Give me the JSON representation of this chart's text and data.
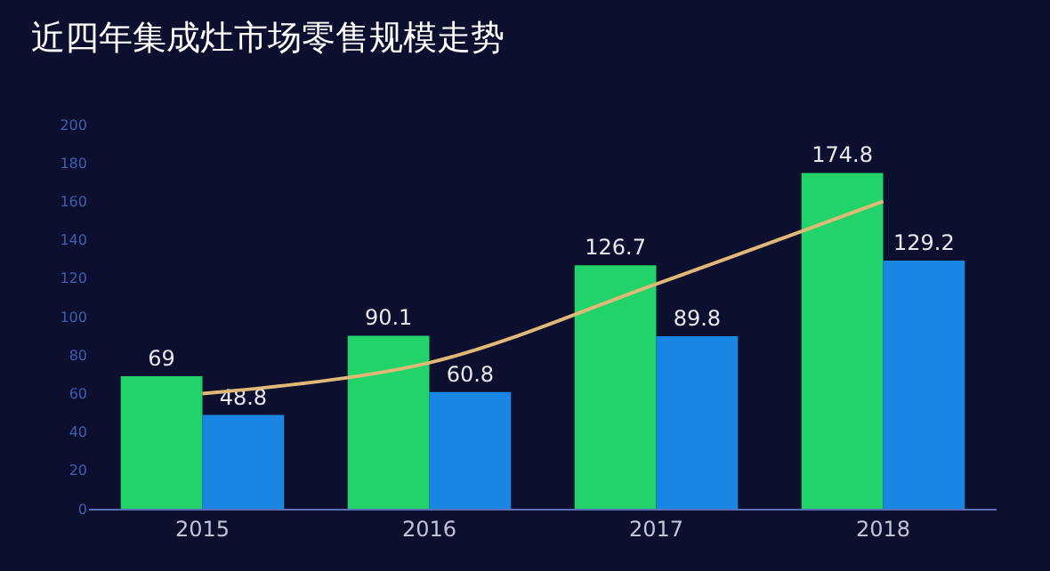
{
  "chart_data": {
    "type": "bar",
    "title": "近四年集成灶市场零售规模走势",
    "categories": [
      "2015",
      "2016",
      "2017",
      "2018"
    ],
    "series": [
      {
        "color": "#22d36a",
        "values": [
          69,
          90.1,
          126.7,
          174.8
        ],
        "value_labels": [
          "69",
          "90.1",
          "126.7",
          "174.8"
        ]
      },
      {
        "color": "#1a86e4",
        "values": [
          48.8,
          60.8,
          89.8,
          129.2
        ],
        "value_labels": [
          "48.8",
          "60.8",
          "89.8",
          "129.2"
        ]
      },
      {
        "type": "line",
        "color": "#e0b878",
        "values": [
          60,
          76,
          117,
          160
        ]
      }
    ],
    "ylim": [
      0,
      200
    ],
    "yticks": [
      0,
      20,
      40,
      60,
      80,
      100,
      120,
      140,
      160,
      180,
      200
    ],
    "grid": false
  }
}
